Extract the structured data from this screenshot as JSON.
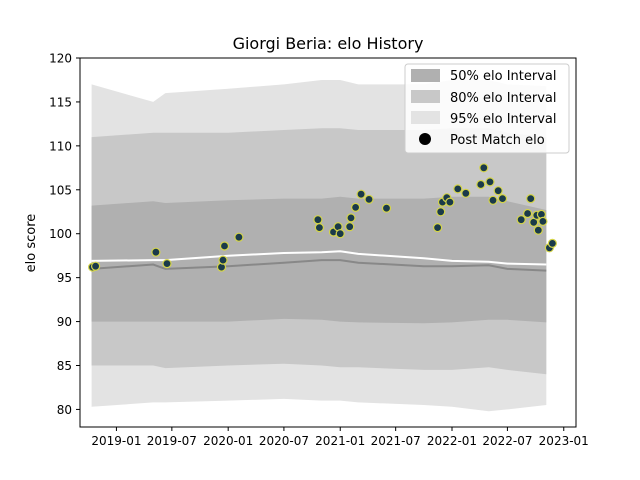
{
  "chart_data": {
    "type": "scatter",
    "title": "Giorgi Beria: elo History",
    "xlabel": "",
    "ylabel": "elo score",
    "xlim": [
      "2018-09-04",
      "2023-02-10"
    ],
    "ylim": [
      78,
      120
    ],
    "x_ticks": [
      "2019-01",
      "2019-07",
      "2020-01",
      "2020-07",
      "2021-01",
      "2021-07",
      "2022-01",
      "2022-07",
      "2023-01"
    ],
    "y_ticks": [
      80,
      85,
      90,
      95,
      100,
      105,
      110,
      115,
      120
    ],
    "grid": false,
    "legend_position": "top-right",
    "legend": [
      {
        "label": "50% elo Interval",
        "color": "#b0b0b0"
      },
      {
        "label": "80% elo Interval",
        "color": "#c8c8c8"
      },
      {
        "label": "95% elo Interval",
        "color": "#e3e3e3"
      },
      {
        "label": "Post Match elo",
        "color": "#000000"
      }
    ],
    "colors": {
      "mean_line": "#ffffff",
      "median_line": "#888888",
      "marker_fill": "#1a3a4a",
      "marker_edge": "#d4d44a"
    },
    "intervals": {
      "dates": [
        "2018-10-12",
        "2019-05-01",
        "2019-06-10",
        "2020-01-01",
        "2020-07-01",
        "2020-11-01",
        "2021-01-01",
        "2021-03-01",
        "2021-10-01",
        "2022-01-01",
        "2022-05-01",
        "2022-07-01",
        "2022-11-05"
      ],
      "p95_upper": [
        117,
        115,
        116,
        116.5,
        117,
        117.5,
        117.5,
        117,
        117,
        117.5,
        117.5,
        117,
        116.8
      ],
      "p80_upper": [
        111,
        111.5,
        111.5,
        111.5,
        111.8,
        112,
        112,
        111.8,
        111.8,
        112,
        112,
        111.5,
        111
      ],
      "p50_upper": [
        103.2,
        103.7,
        103.5,
        103.8,
        104,
        104,
        104.2,
        104,
        104,
        104.2,
        104.2,
        103.7,
        102.7
      ],
      "median": [
        96,
        96.5,
        96,
        96.3,
        96.7,
        97,
        97,
        96.7,
        96.3,
        96.3,
        96.4,
        96,
        95.8
      ],
      "mean": [
        96.9,
        97,
        97,
        97.5,
        97.8,
        97.9,
        98,
        97.7,
        97.2,
        96.9,
        96.8,
        96.6,
        96.5
      ],
      "p50_lower": [
        90,
        90,
        90,
        90,
        90.3,
        90.2,
        90,
        89.9,
        89.8,
        89.9,
        90.2,
        90.2,
        89.9
      ],
      "p80_lower": [
        85,
        85,
        84.7,
        85,
        85.2,
        85,
        84.8,
        84.8,
        84.5,
        84.5,
        84.8,
        84.5,
        84
      ],
      "p95_lower": [
        80.3,
        80.8,
        80.8,
        81,
        81.2,
        81,
        81,
        80.8,
        80.5,
        80.3,
        79.8,
        80,
        80.5
      ]
    },
    "series": [
      {
        "name": "Post Match elo",
        "x": [
          "2018-10-15",
          "2018-10-25",
          "2019-05-10",
          "2019-06-15",
          "2019-12-10",
          "2019-12-15",
          "2019-12-20",
          "2020-02-05",
          "2020-10-20",
          "2020-10-25",
          "2020-12-10",
          "2020-12-25",
          "2021-01-01",
          "2021-02-01",
          "2021-02-05",
          "2021-02-20",
          "2021-03-10",
          "2021-04-05",
          "2021-06-01",
          "2021-11-15",
          "2021-11-25",
          "2021-12-01",
          "2021-12-15",
          "2021-12-25",
          "2022-01-20",
          "2022-02-15",
          "2022-04-05",
          "2022-04-15",
          "2022-05-05",
          "2022-05-15",
          "2022-06-01",
          "2022-06-15",
          "2022-08-15",
          "2022-09-05",
          "2022-09-15",
          "2022-09-25",
          "2022-10-05",
          "2022-10-10",
          "2022-10-20",
          "2022-10-25",
          "2022-11-15",
          "2022-11-25"
        ],
        "y": [
          96.2,
          96.3,
          97.9,
          96.6,
          96.2,
          97,
          98.6,
          99.6,
          101.6,
          100.7,
          100.2,
          100.8,
          100,
          100.8,
          101.8,
          103,
          104.5,
          103.9,
          102.9,
          100.7,
          102.5,
          103.6,
          104.1,
          103.6,
          105.1,
          104.6,
          105.6,
          107.5,
          105.9,
          103.8,
          104.9,
          104.0,
          101.6,
          102.3,
          104,
          101.3,
          102.1,
          100.4,
          102.2,
          101.4,
          98.4,
          98.9
        ]
      }
    ]
  }
}
